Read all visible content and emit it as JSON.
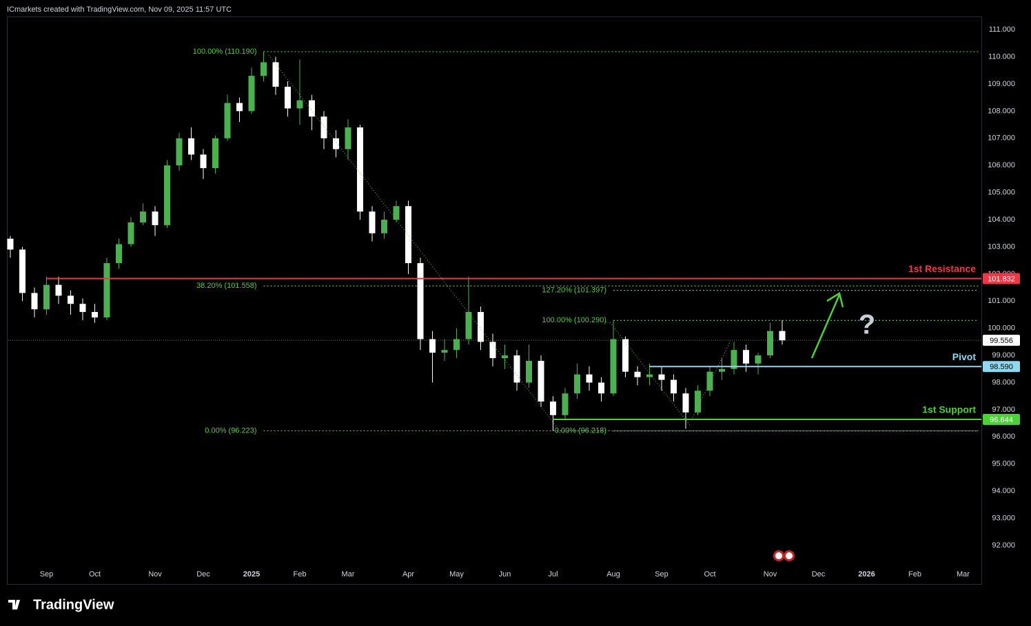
{
  "header": "ICmarkets created with TradingView.com, Nov 09, 2025 11:57 UTC",
  "footer": "TradingView",
  "chart_data": {
    "type": "candlestick",
    "categories": [
      null,
      null,
      null,
      "Sep",
      null,
      null,
      null,
      "Oct",
      null,
      null,
      null,
      null,
      "Nov",
      null,
      null,
      null,
      "Dec",
      null,
      null,
      null,
      "2025",
      null,
      null,
      null,
      "Feb",
      null,
      null,
      null,
      "Mar",
      null,
      null,
      null,
      null,
      "Apr",
      null,
      null,
      null,
      "May",
      null,
      null,
      null,
      "Jun",
      null,
      null,
      null,
      "Jul",
      null,
      null,
      null,
      null,
      "Aug",
      null,
      null,
      null,
      "Sep",
      null,
      null,
      null,
      "Oct",
      null,
      null,
      null,
      null,
      "Nov",
      null,
      null,
      null,
      "Dec",
      null,
      null,
      null,
      "2026",
      null,
      null,
      null,
      "Feb",
      null,
      null,
      null,
      "Mar",
      null
    ],
    "open": [
      103.3,
      102.9,
      101.3,
      100.7,
      101.6,
      101.2,
      100.9,
      100.6,
      100.4,
      102.4,
      103.1,
      103.9,
      104.3,
      103.8,
      106.0,
      107.0,
      106.4,
      105.9,
      107.0,
      108.3,
      108.0,
      109.3,
      109.8,
      108.9,
      108.1,
      108.4,
      107.8,
      107.0,
      106.6,
      107.4,
      104.3,
      103.5,
      104.0,
      104.5,
      102.4,
      99.6,
      99.1,
      99.2,
      99.6,
      100.6,
      99.5,
      98.9,
      99.0,
      98.0,
      98.8,
      97.3,
      96.8,
      97.6,
      98.3,
      98.0,
      97.6,
      99.6,
      98.4,
      98.2,
      98.3,
      98.1,
      97.6,
      96.9,
      97.7,
      98.4,
      98.5,
      99.2,
      98.7,
      99.0,
      99.9,
      null,
      null,
      null,
      null,
      null,
      null,
      null,
      null,
      null,
      null,
      null,
      null,
      null,
      null,
      null,
      null
    ],
    "high": [
      103.4,
      103.0,
      101.5,
      101.9,
      101.9,
      101.4,
      101.1,
      100.9,
      102.6,
      103.3,
      104.1,
      104.6,
      104.5,
      106.2,
      107.2,
      107.4,
      106.6,
      107.1,
      108.6,
      108.5,
      109.6,
      110.19,
      110.0,
      109.1,
      109.9,
      108.6,
      108.0,
      107.3,
      107.7,
      107.5,
      104.5,
      104.3,
      104.7,
      104.7,
      102.6,
      99.9,
      99.6,
      100.0,
      101.9,
      100.8,
      99.8,
      99.4,
      99.2,
      99.4,
      99.0,
      97.5,
      97.8,
      98.7,
      98.6,
      98.2,
      100.29,
      99.7,
      98.6,
      98.7,
      98.6,
      98.3,
      97.8,
      97.9,
      98.6,
      98.9,
      99.5,
      99.4,
      99.1,
      100.2,
      100.3,
      null,
      null,
      null,
      null,
      null,
      null,
      null,
      null,
      null,
      null,
      null,
      null,
      null,
      null,
      null,
      null
    ],
    "low": [
      102.6,
      101.0,
      100.4,
      100.5,
      100.9,
      100.5,
      100.3,
      100.2,
      100.3,
      102.2,
      103.0,
      103.8,
      103.4,
      103.7,
      105.8,
      106.2,
      105.5,
      105.7,
      106.9,
      107.6,
      107.9,
      109.1,
      108.6,
      107.8,
      107.5,
      107.3,
      106.6,
      106.3,
      106.2,
      104.0,
      103.2,
      103.3,
      103.9,
      102.0,
      99.2,
      98.0,
      98.8,
      98.9,
      99.4,
      99.2,
      98.6,
      98.5,
      97.7,
      97.8,
      97.1,
      96.218,
      96.6,
      97.4,
      97.7,
      97.3,
      97.5,
      98.2,
      97.9,
      97.9,
      97.7,
      97.3,
      96.3,
      96.8,
      97.5,
      98.1,
      98.3,
      98.4,
      98.3,
      98.9,
      99.4,
      null,
      null,
      null,
      null,
      null,
      null,
      null,
      null,
      null,
      null,
      null,
      null,
      null,
      null,
      null,
      null
    ],
    "close": [
      102.9,
      101.3,
      100.7,
      101.6,
      101.2,
      100.9,
      100.6,
      100.4,
      102.4,
      103.1,
      103.9,
      104.3,
      103.8,
      106.0,
      107.0,
      106.4,
      105.9,
      107.0,
      108.3,
      108.0,
      109.3,
      109.8,
      108.9,
      108.1,
      108.4,
      107.8,
      107.0,
      106.6,
      107.4,
      104.3,
      103.5,
      104.0,
      104.5,
      102.4,
      99.6,
      99.1,
      99.2,
      99.6,
      100.6,
      99.5,
      98.9,
      99.0,
      98.0,
      98.8,
      97.3,
      96.8,
      97.6,
      98.3,
      98.0,
      97.6,
      99.6,
      98.4,
      98.2,
      98.3,
      98.1,
      97.6,
      96.9,
      97.7,
      98.4,
      98.5,
      99.2,
      98.7,
      99.0,
      99.9,
      99.556,
      null,
      null,
      null,
      null,
      null,
      null,
      null,
      null,
      null,
      null,
      null,
      null,
      null,
      null,
      null,
      null
    ],
    "up_color": "#4caf50",
    "down_color": "#ffffff",
    "ylim": [
      91.34,
      111.46
    ],
    "yticks": [
      {
        "value": 92,
        "label": "92.000"
      },
      {
        "value": 93,
        "label": "93.000"
      },
      {
        "value": 94,
        "label": "94.000"
      },
      {
        "value": 95,
        "label": "95.000"
      },
      {
        "value": 96,
        "label": "96.000"
      },
      {
        "value": 97,
        "label": "97.000"
      },
      {
        "value": 98,
        "label": "98.000"
      },
      {
        "value": 99,
        "label": "99.000"
      },
      {
        "value": 100,
        "label": "100.000"
      },
      {
        "value": 101,
        "label": "101.000"
      },
      {
        "value": 102,
        "label": "102.000"
      },
      {
        "value": 103,
        "label": "103.000"
      },
      {
        "value": 104,
        "label": "104.000"
      },
      {
        "value": 105,
        "label": "105.000"
      },
      {
        "value": 106,
        "label": "106.000"
      },
      {
        "value": 107,
        "label": "107.000"
      },
      {
        "value": 108,
        "label": "108.000"
      },
      {
        "value": 109,
        "label": "109.000"
      },
      {
        "value": 110,
        "label": "110.000"
      },
      {
        "value": 111,
        "label": "111.000"
      }
    ],
    "last_price": {
      "value": 99.556,
      "label": "99.556"
    },
    "levels": [
      {
        "name": "1st Resistance",
        "value": 101.832,
        "label": "101.832",
        "color": "#f23645"
      },
      {
        "name": "Pivot",
        "value": 98.59,
        "label": "98.590",
        "color": "#8fd8f0"
      },
      {
        "name": "1st Support",
        "value": 96.644,
        "label": "96.644",
        "color": "#4cd137"
      }
    ],
    "fib_levels": [
      {
        "value": 110.19,
        "label": "100.00% (110.190)"
      },
      {
        "value": 101.558,
        "label": "38.20% (101.558)"
      },
      {
        "value": 96.223,
        "label": "0.00% (96.223)"
      },
      {
        "value": 101.397,
        "label": "127.20% (101.397)"
      },
      {
        "value": 100.29,
        "label": "100.00% (100.290)"
      },
      {
        "value": 96.218,
        "label": "0.00% (96.218)"
      }
    ],
    "fib_color": "#4cd137"
  }
}
